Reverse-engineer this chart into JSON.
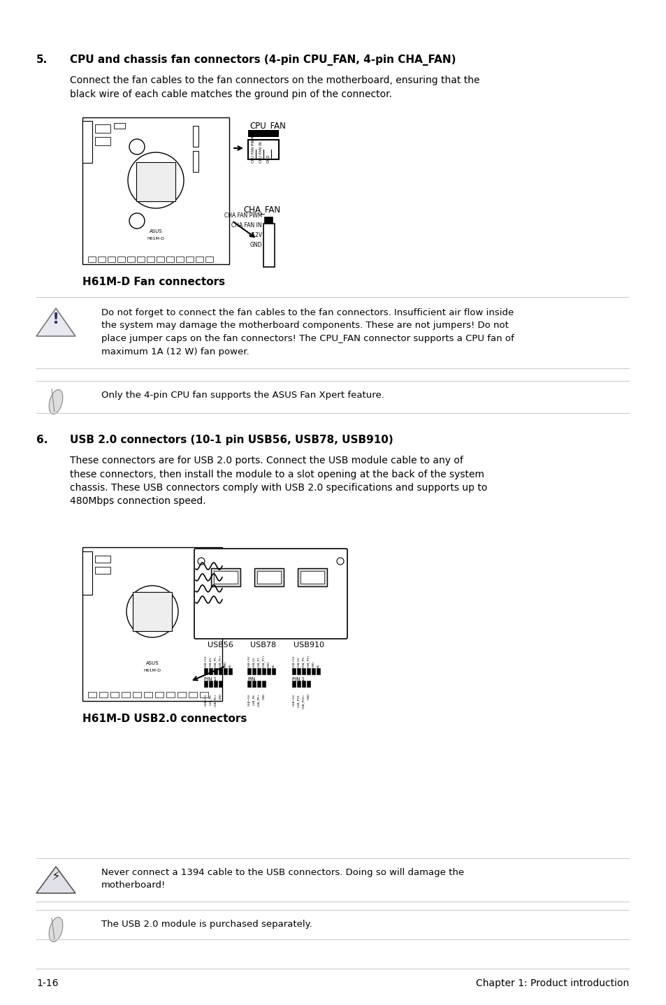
{
  "bg_color": "#ffffff",
  "section5_number": "5.",
  "section5_heading": "CPU and chassis fan connectors (4-pin CPU_FAN, 4-pin CHA_FAN)",
  "section5_body": "Connect the fan cables to the fan connectors on the motherboard, ensuring that the\nblack wire of each cable matches the ground pin of the connector.",
  "fan_diagram_caption": "H61M-D Fan connectors",
  "warning_text": "Do not forget to connect the fan cables to the fan connectors. Insufficient air flow inside\nthe system may damage the motherboard components. These are not jumpers! Do not\nplace jumper caps on the fan connectors! The CPU_FAN connector supports a CPU fan of\nmaximum 1A (12 W) fan power.",
  "note_text": "Only the 4-pin CPU fan supports the ASUS Fan Xpert feature.",
  "section6_number": "6.",
  "section6_heading": "USB 2.0 connectors (10-1 pin USB56, USB78, USB910)",
  "section6_body": "These connectors are for USB 2.0 ports. Connect the USB module cable to any of\nthese connectors, then install the module to a slot opening at the back of the system\nchassis. These USB connectors comply with USB 2.0 specifications and supports up to\n480Mbps connection speed.",
  "usb_diagram_caption": "H61M-D USB2.0 connectors",
  "warning2_text": "Never connect a 1394 cable to the USB connectors. Doing so will damage the\nmotherboard!",
  "note2_text": "The USB 2.0 module is purchased separately.",
  "footer_left": "1-16",
  "footer_right": "Chapter 1: Product introduction",
  "text_color": "#000000",
  "line_color": "#cccccc"
}
